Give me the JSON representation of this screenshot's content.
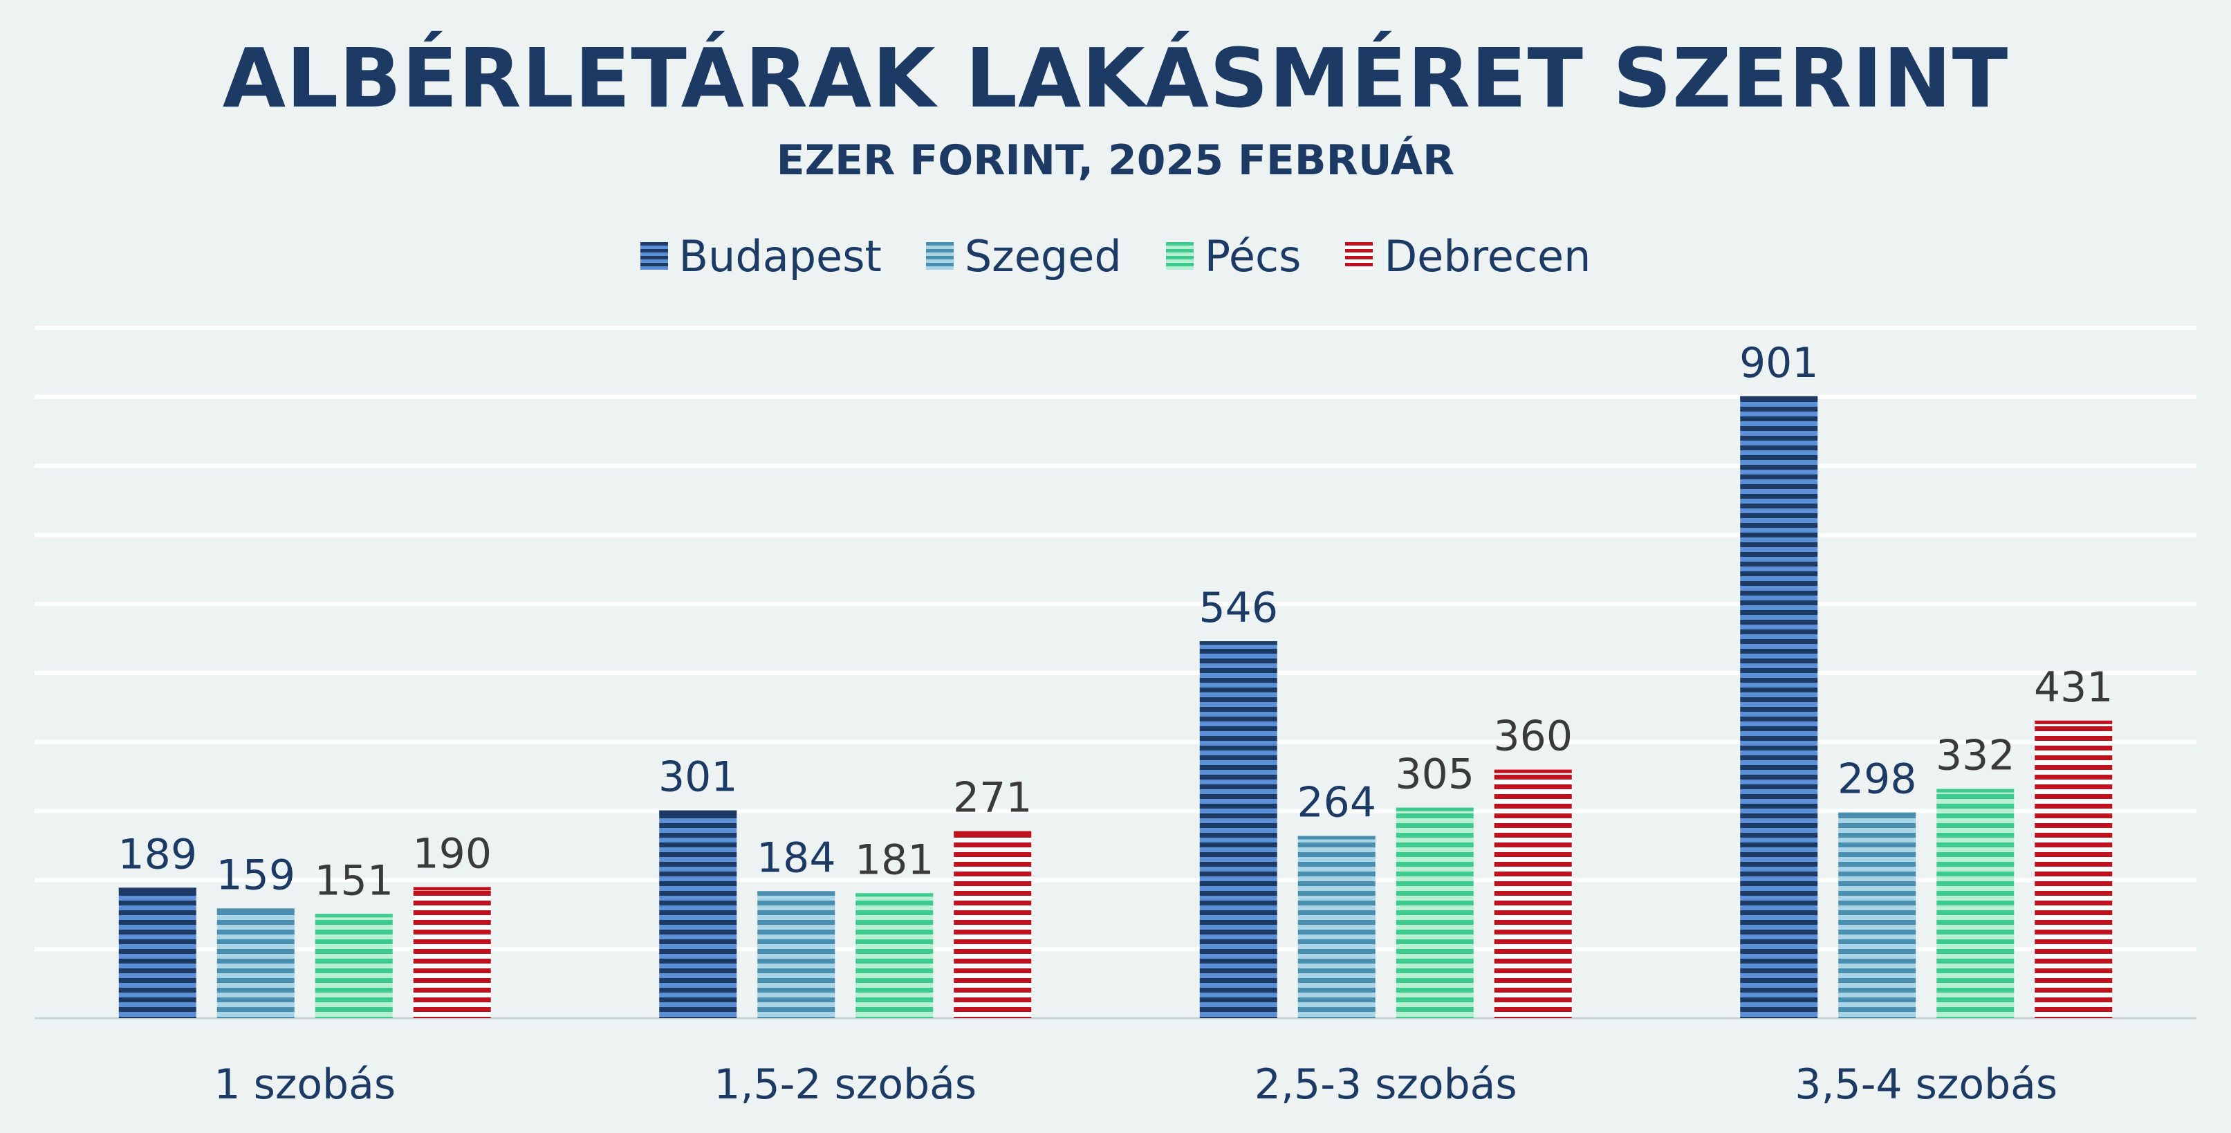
{
  "chart_data": {
    "type": "bar",
    "title": "ALBÉRLETÁRAK LAKÁSMÉRET SZERINT",
    "subtitle": "EZER FORINT, 2025 FEBRUÁR",
    "categories": [
      "1 szobás",
      "1,5-2 szobás",
      "2,5-3 szobás",
      "3,5-4 szobás"
    ],
    "series": [
      {
        "name": "Budapest",
        "values": [
          189,
          301,
          546,
          901
        ],
        "color": "#1c3a64",
        "stripe": "#5b8fd6"
      },
      {
        "name": "Szeged",
        "values": [
          159,
          184,
          264,
          298
        ],
        "color": "#4a8fb0",
        "stripe": "#a9d5e6"
      },
      {
        "name": "Pécs",
        "values": [
          151,
          181,
          305,
          332
        ],
        "color": "#3ec98e",
        "stripe": "#b7f0d2"
      },
      {
        "name": "Debrecen",
        "values": [
          190,
          271,
          360,
          431
        ],
        "color": "#c0121e",
        "stripe": "#ffffff"
      }
    ],
    "ylim": [
      0,
      1000
    ],
    "grid": true,
    "legend": "top-center",
    "xlabel": "",
    "ylabel": ""
  }
}
